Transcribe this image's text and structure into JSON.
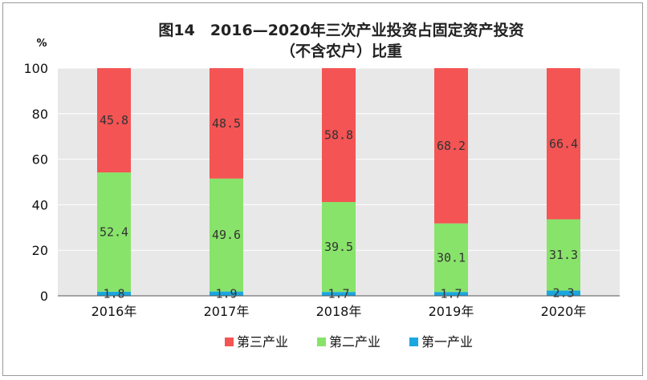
{
  "chart_data": {
    "type": "bar",
    "stacked": true,
    "title": "图14　2016—2020年三次产业投资占固定资产投资",
    "subtitle": "（不含农户）比重",
    "ylabel": "%",
    "ylim": [
      0,
      100
    ],
    "yticks": [
      0,
      20,
      40,
      60,
      80,
      100
    ],
    "categories": [
      "2016年",
      "2017年",
      "2018年",
      "2019年",
      "2020年"
    ],
    "series": [
      {
        "name": "第一产业",
        "color": "#1aa7e0",
        "values": [
          1.8,
          1.9,
          1.7,
          1.7,
          2.3
        ]
      },
      {
        "name": "第二产业",
        "color": "#88e36a",
        "values": [
          52.4,
          49.6,
          39.5,
          30.1,
          31.3
        ]
      },
      {
        "name": "第三产业",
        "color": "#f45454",
        "values": [
          45.8,
          48.5,
          58.8,
          68.2,
          66.4
        ]
      }
    ],
    "legend_order": [
      "第三产业",
      "第二产业",
      "第一产业"
    ],
    "legend_position": "bottom",
    "grid": true
  }
}
